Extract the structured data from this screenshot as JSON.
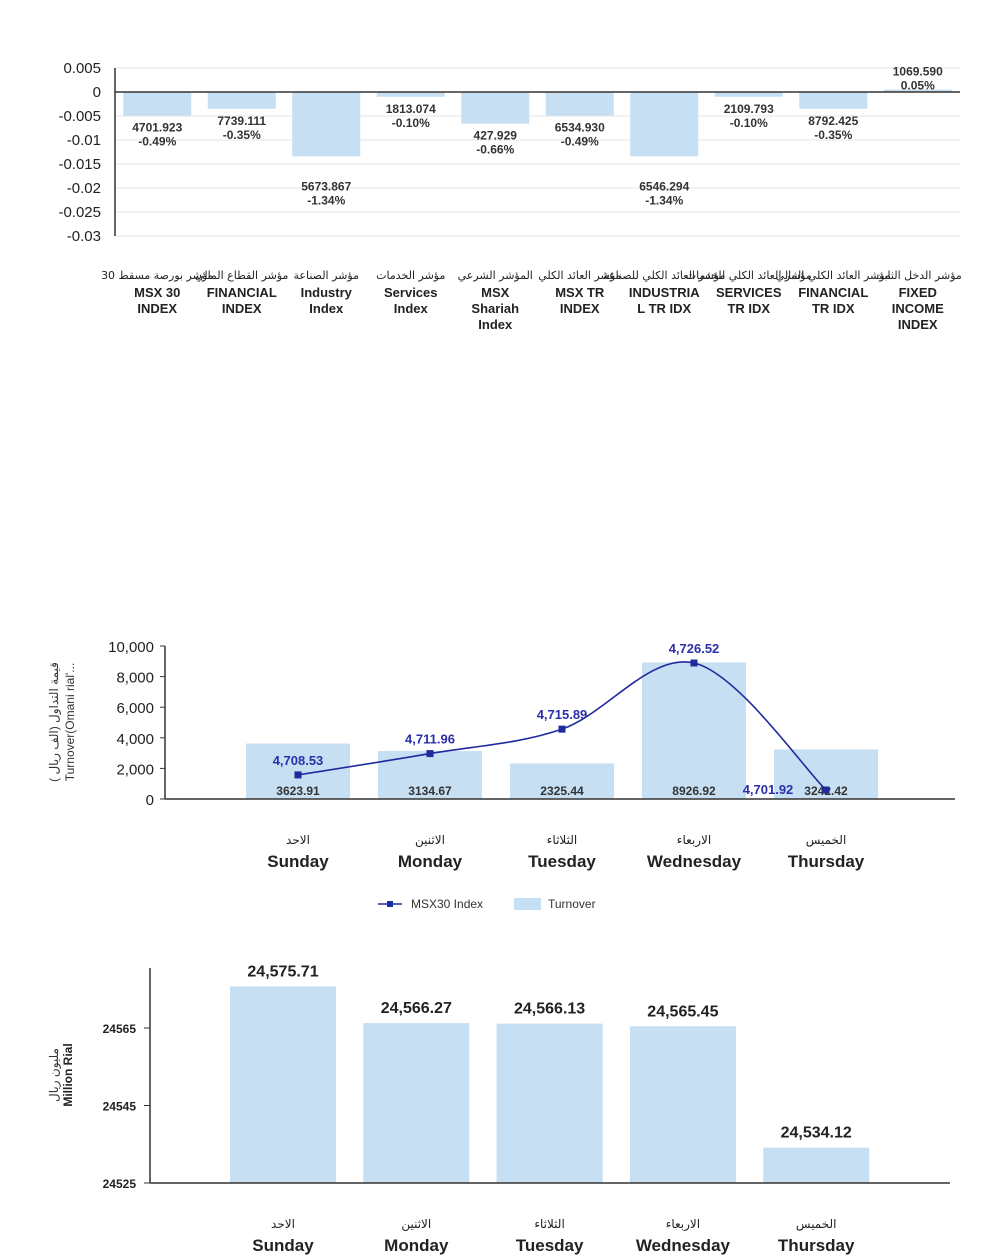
{
  "chart_data": [
    {
      "type": "bar",
      "title": "",
      "ylim": [
        -0.03,
        0.005
      ],
      "yticks": [
        "0.005",
        "0",
        "-0.005",
        "-0.01",
        "-0.015",
        "-0.02",
        "-0.025",
        "-0.03"
      ],
      "grid": true,
      "categories": [
        {
          "ar": "مؤشر بورصة مسقط 30",
          "en": [
            "MSX 30",
            "INDEX"
          ]
        },
        {
          "ar": "مؤشر القطاع المالي",
          "en": [
            "FINANCIAL",
            "INDEX"
          ]
        },
        {
          "ar": "مؤشر الصناعة",
          "en": [
            "Industry",
            "Index"
          ]
        },
        {
          "ar": "مؤشر الخدمات",
          "en": [
            "Services",
            "Index"
          ]
        },
        {
          "ar": "المؤشر الشرعي",
          "en": [
            "MSX",
            "Shariah",
            "Index"
          ]
        },
        {
          "ar": "مؤشر العائد الكلي",
          "en": [
            "MSX TR",
            "INDEX"
          ]
        },
        {
          "ar": "مؤشر العائد الكلي للصناعة",
          "en": [
            "INDUSTRIA",
            "L TR IDX"
          ]
        },
        {
          "ar": "مؤشر العائد الكلي للخدمات",
          "en": [
            "SERVICES",
            "TR IDX"
          ]
        },
        {
          "ar": "مؤشر العائد الكلي المالي",
          "en": [
            "FINANCIAL",
            "TR IDX"
          ]
        },
        {
          "ar": "مؤشر الدخل الثابت",
          "en": [
            "FIXED",
            "INCOME",
            "INDEX"
          ]
        }
      ],
      "values": [
        -0.0049,
        -0.0035,
        -0.0134,
        -0.001,
        -0.0066,
        -0.0049,
        -0.0134,
        -0.001,
        -0.0035,
        0.0005
      ],
      "data_labels": [
        [
          "4701.923",
          "-0.49%"
        ],
        [
          "7739.111",
          "-0.35%"
        ],
        [
          "5673.867",
          "-1.34%"
        ],
        [
          "1813.074",
          "-0.10%"
        ],
        [
          "427.929",
          "-0.66%"
        ],
        [
          "6534.930",
          "-0.49%"
        ],
        [
          "6546.294",
          "-1.34%"
        ],
        [
          "2109.793",
          "-0.10%"
        ],
        [
          "8792.425",
          "-0.35%"
        ],
        [
          "1069.590",
          "0.05%"
        ]
      ]
    },
    {
      "type": "bar",
      "ylabel": [
        "قيمة التداول (الف ريال )",
        "Turnover(Omani rial'..."
      ],
      "ylim": [
        0,
        10000
      ],
      "yticks": [
        "10,000",
        "8,000",
        "6,000",
        "4,000",
        "2,000",
        "0"
      ],
      "categories": [
        {
          "ar": "الاحد",
          "en": "Sunday"
        },
        {
          "ar": "الاثنين",
          "en": "Monday"
        },
        {
          "ar": "الثلاثاء",
          "en": "Tuesday"
        },
        {
          "ar": "الاربعاء",
          "en": "Wednesday"
        },
        {
          "ar": "الخميس",
          "en": "Thursday"
        }
      ],
      "series": [
        {
          "name": "Turnover",
          "values": [
            3623.91,
            3134.67,
            2325.44,
            8926.92,
            3242.42
          ],
          "labels": [
            "3623.91",
            "3134.67",
            "2325.44",
            "8926.92",
            "3242.42"
          ]
        },
        {
          "name": "MSX30 Index",
          "values": [
            4708.53,
            4711.96,
            4715.89,
            4726.52,
            4701.92
          ],
          "labels": [
            "4,708.53",
            "4,711.96",
            "4,715.89",
            "4,726.52",
            "4,701.92"
          ]
        }
      ],
      "legend": "bottom",
      "colors": {
        "bar": "#c6dff3",
        "line": "#1f2a9e"
      }
    },
    {
      "type": "bar",
      "ylabel": [
        "مليون ريال",
        "Million Rial"
      ],
      "ylim": [
        24525,
        24580
      ],
      "yticks": [
        "24565",
        "24545",
        "24525"
      ],
      "categories": [
        {
          "ar": "الاحد",
          "en": "Sunday"
        },
        {
          "ar": "الاثنين",
          "en": "Monday"
        },
        {
          "ar": "الثلاثاء",
          "en": "Tuesday"
        },
        {
          "ar": "الاربعاء",
          "en": "Wednesday"
        },
        {
          "ar": "الخميس",
          "en": "Thursday"
        }
      ],
      "values": [
        24575.71,
        24566.27,
        24566.13,
        24565.45,
        24534.12
      ],
      "labels": [
        "24,575.71",
        "24,566.27",
        "24,566.13",
        "24,565.45",
        "24,534.12"
      ],
      "colors": {
        "bar": "#c6dff3"
      }
    }
  ]
}
